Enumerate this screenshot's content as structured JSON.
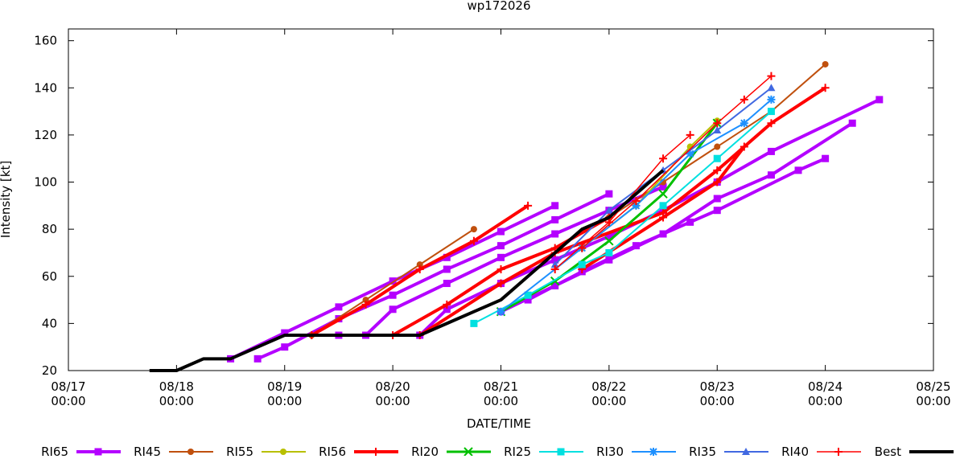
{
  "chart_data": {
    "type": "line",
    "title": "wp172026",
    "x_label": "DATE/TIME",
    "y_label": "Intensity [kt]",
    "xlim": [
      "08/17 00:00",
      "08/25 00:00"
    ],
    "xticks": [
      "08/17 00:00",
      "08/18 00:00",
      "08/19 00:00",
      "08/20 00:00",
      "08/21 00:00",
      "08/22 00:00",
      "08/23 00:00",
      "08/24 00:00",
      "08/25 00:00"
    ],
    "ylim": [
      20,
      165
    ],
    "yticks": [
      20,
      40,
      60,
      80,
      100,
      120,
      140,
      160
    ],
    "grid": false,
    "legend": "bottom",
    "series": [
      {
        "name": "RI65",
        "color": "#b400ff",
        "marker": "square",
        "line_width": 4,
        "tracks": [
          {
            "x": [
              "08/18 12:00",
              "08/19 00:00",
              "08/19 12:00",
              "08/20 00:00",
              "08/20 12:00",
              "08/21 00:00",
              "08/21 12:00"
            ],
            "values": [
              25,
              36,
              47,
              58,
              68,
              79,
              90
            ]
          },
          {
            "x": [
              "08/18 18:00",
              "08/19 00:00",
              "08/19 12:00",
              "08/20 00:00",
              "08/20 12:00",
              "08/21 00:00",
              "08/21 12:00",
              "08/22 00:00"
            ],
            "values": [
              25,
              30,
              42,
              52,
              63,
              73,
              84,
              95
            ]
          },
          {
            "x": [
              "08/19 12:00",
              "08/19 18:00",
              "08/20 00:00",
              "08/20 12:00",
              "08/21 00:00",
              "08/21 12:00",
              "08/22 00:00",
              "08/22 12:00"
            ],
            "values": [
              35,
              35,
              46,
              57,
              68,
              78,
              88,
              98
            ]
          },
          {
            "x": [
              "08/20 06:00",
              "08/20 12:00",
              "08/21 00:00",
              "08/21 12:00",
              "08/22 00:00",
              "08/22 12:00",
              "08/23 00:00",
              "08/23 12:00",
              "08/24 12:00"
            ],
            "values": [
              35,
              46,
              57,
              67,
              77,
              88,
              100,
              113,
              135
            ]
          },
          {
            "x": [
              "08/21 00:00",
              "08/21 12:00",
              "08/22 00:00",
              "08/22 12:00",
              "08/23 00:00",
              "08/23 12:00",
              "08/24 06:00"
            ],
            "values": [
              45,
              56,
              67,
              78,
              93,
              103,
              125
            ]
          },
          {
            "x": [
              "08/21 06:00",
              "08/21 18:00",
              "08/22 06:00",
              "08/22 18:00",
              "08/23 00:00",
              "08/23 18:00",
              "08/24 00:00"
            ],
            "values": [
              50,
              62,
              73,
              83,
              88,
              105,
              110
            ]
          }
        ]
      },
      {
        "name": "RI45",
        "color": "#c0500e",
        "marker": "circle",
        "line_width": 2,
        "tracks": [
          {
            "x": [
              "08/19 06:00",
              "08/19 18:00",
              "08/20 06:00",
              "08/20 18:00"
            ],
            "values": [
              35,
              50,
              65,
              80
            ]
          },
          {
            "x": [
              "08/22 00:00",
              "08/22 12:00",
              "08/23 00:00",
              "08/23 12:00",
              "08/24 00:00"
            ],
            "values": [
              85,
              100,
              115,
              130,
              150
            ]
          }
        ]
      },
      {
        "name": "RI55",
        "color": "#b8c000",
        "marker": "circle",
        "line_width": 2,
        "tracks": [
          {
            "x": [
              "08/21 18:00",
              "08/22 06:00",
              "08/22 18:00",
              "08/23 00:00"
            ],
            "values": [
              72,
              90,
              115,
              126
            ]
          }
        ]
      },
      {
        "name": "RI56",
        "color": "#ff0000",
        "marker": "plus",
        "line_width": 4,
        "tracks": [
          {
            "x": [
              "08/19 06:00",
              "08/19 18:00",
              "08/20 06:00",
              "08/20 18:00",
              "08/21 06:00"
            ],
            "values": [
              35,
              48,
              63,
              75,
              90
            ]
          },
          {
            "x": [
              "08/20 00:00",
              "08/20 12:00",
              "08/21 00:00",
              "08/21 12:00",
              "08/22 00:00"
            ],
            "values": [
              35,
              48,
              63,
              72,
              85
            ]
          },
          {
            "x": [
              "08/20 06:00",
              "08/21 00:00",
              "08/21 12:00",
              "08/22 12:00",
              "08/23 00:00",
              "08/23 12:00",
              "08/24 00:00"
            ],
            "values": [
              35,
              57,
              70,
              87,
              105,
              125,
              140
            ]
          },
          {
            "x": [
              "08/21 18:00",
              "08/22 12:00",
              "08/23 00:00",
              "08/23 06:00"
            ],
            "values": [
              63,
              85,
              100,
              115
            ]
          }
        ]
      },
      {
        "name": "RI20",
        "color": "#00c000",
        "marker": "x",
        "line_width": 3,
        "tracks": [
          {
            "x": [
              "08/21 00:00",
              "08/21 12:00",
              "08/22 00:00",
              "08/22 12:00",
              "08/23 00:00"
            ],
            "values": [
              45,
              58,
              75,
              95,
              125
            ]
          }
        ]
      },
      {
        "name": "RI25",
        "color": "#00e0e0",
        "marker": "square",
        "line_width": 2,
        "tracks": [
          {
            "x": [
              "08/20 18:00",
              "08/21 06:00",
              "08/21 18:00",
              "08/22 00:00",
              "08/22 12:00",
              "08/23 00:00",
              "08/23 12:00"
            ],
            "values": [
              40,
              52,
              65,
              70,
              90,
              110,
              130
            ]
          }
        ]
      },
      {
        "name": "RI30",
        "color": "#1e90ff",
        "marker": "asterisk",
        "line_width": 2,
        "tracks": [
          {
            "x": [
              "08/21 00:00",
              "08/21 18:00",
              "08/22 06:00",
              "08/22 18:00",
              "08/23 06:00",
              "08/23 12:00"
            ],
            "values": [
              45,
              72,
              90,
              112,
              125,
              135
            ]
          }
        ]
      },
      {
        "name": "RI35",
        "color": "#4169e1",
        "marker": "triangle",
        "line_width": 2,
        "tracks": [
          {
            "x": [
              "08/21 12:00",
              "08/22 00:00",
              "08/22 12:00",
              "08/23 00:00",
              "08/23 12:00"
            ],
            "values": [
              65,
              88,
              105,
              122,
              140
            ]
          }
        ]
      },
      {
        "name": "RI40",
        "color": "#ff0000",
        "marker": "plus",
        "line_width": 1.5,
        "tracks": [
          {
            "x": [
              "08/21 12:00",
              "08/22 00:00",
              "08/22 12:00",
              "08/22 18:00"
            ],
            "values": [
              63,
              83,
              110,
              120
            ]
          },
          {
            "x": [
              "08/21 18:00",
              "08/22 06:00",
              "08/23 00:00",
              "08/23 06:00",
              "08/23 12:00"
            ],
            "values": [
              72,
              92,
              125,
              135,
              145
            ]
          }
        ]
      },
      {
        "name": "Best",
        "color": "#000000",
        "marker": "none",
        "line_width": 4,
        "tracks": [
          {
            "x": [
              "08/17 18:00",
              "08/18 00:00",
              "08/18 06:00",
              "08/18 12:00",
              "08/19 00:00",
              "08/19 06:00",
              "08/19 12:00",
              "08/19 18:00",
              "08/20 00:00",
              "08/20 06:00",
              "08/20 12:00",
              "08/20 18:00",
              "08/21 00:00",
              "08/21 06:00",
              "08/21 12:00",
              "08/21 18:00",
              "08/22 00:00",
              "08/22 06:00",
              "08/22 12:00"
            ],
            "values": [
              20,
              20,
              25,
              25,
              35,
              35,
              35,
              35,
              35,
              35,
              40,
              45,
              50,
              60,
              70,
              80,
              85,
              95,
              105
            ]
          }
        ]
      }
    ]
  }
}
